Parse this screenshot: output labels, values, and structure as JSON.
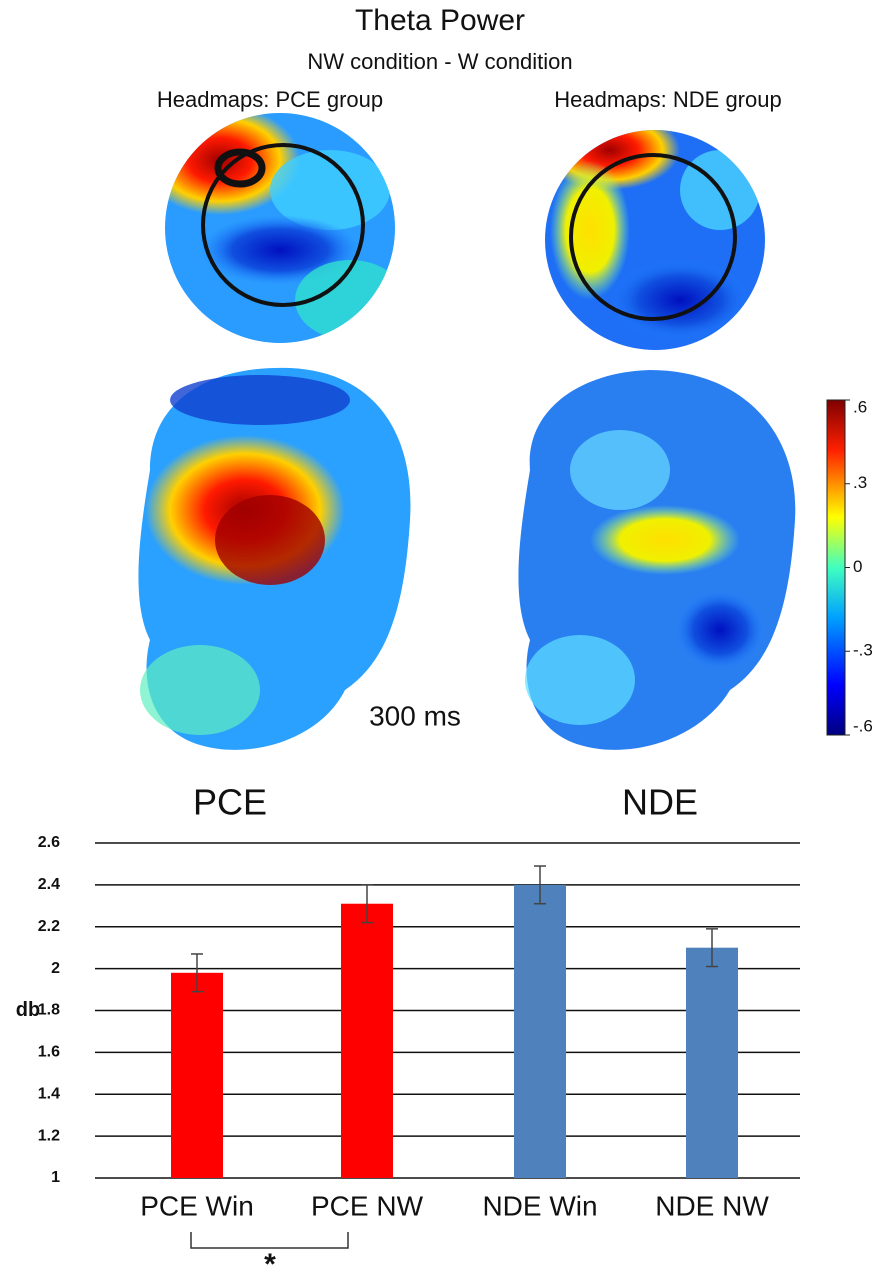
{
  "figure": {
    "title": "Theta Power",
    "subtitle": "NW condition - W condition",
    "headmap_labels": [
      "Headmaps: PCE group",
      "Headmaps: NDE group"
    ],
    "time_label": "300 ms",
    "colorbar": {
      "ylim": [
        -0.6,
        0.6
      ],
      "yticks": [
        {
          "value": 0.6,
          "label": ".6"
        },
        {
          "value": 0.3,
          "label": ".3"
        },
        0,
        {
          "value": -0.3,
          "label": "-.3"
        },
        {
          "value": -0.6,
          "label": "-.6"
        }
      ]
    }
  },
  "chart_data": {
    "type": "bar",
    "group_labels": [
      "PCE",
      "NDE"
    ],
    "ylabel": "db",
    "categories": [
      "PCE Win",
      "PCE NW",
      "NDE Win",
      "NDE NW"
    ],
    "values": [
      1.98,
      2.31,
      2.4,
      2.1
    ],
    "errors": [
      0.09,
      0.09,
      0.09,
      0.09
    ],
    "colors": [
      "#ff0000",
      "#ff0000",
      "#4f81bd",
      "#4f81bd"
    ],
    "ylim": [
      1,
      2.6
    ],
    "yticks": [
      1,
      1.2,
      1.4,
      1.6,
      1.8,
      2,
      2.2,
      2.4,
      2.6
    ],
    "grid": true,
    "significance": "*"
  }
}
